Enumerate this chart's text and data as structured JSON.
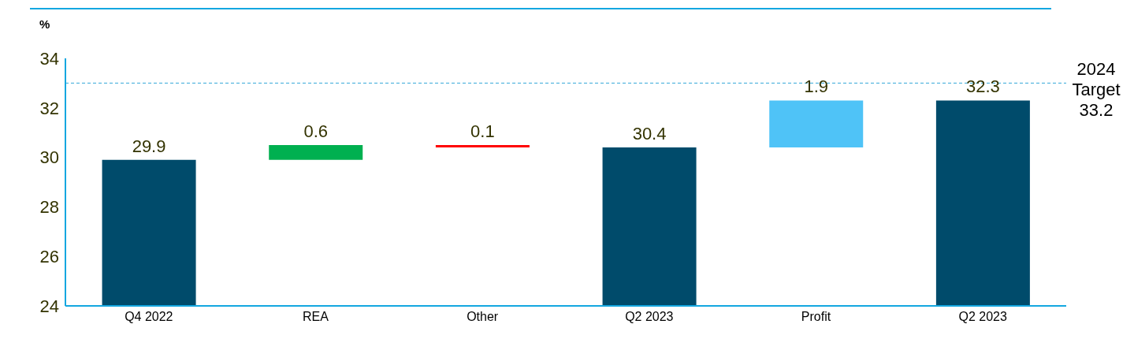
{
  "chart_data": {
    "type": "bar",
    "ylabel": "%",
    "categories": [
      "Q4 2022",
      "REA",
      "Other",
      "Q2 2023",
      "Profit",
      "Q2 2023"
    ],
    "values": [
      29.9,
      0.6,
      -0.1,
      30.4,
      1.9,
      32.3
    ],
    "base": [
      null,
      29.9,
      30.5,
      null,
      30.4,
      null
    ],
    "value_labels": [
      "29.9",
      "0.6",
      "0.1",
      "30.4",
      "1.9",
      "32.3"
    ],
    "colors": [
      "#004b6b",
      "#00b050",
      "#ff0000",
      "#004b6b",
      "#4fc3f7",
      "#004b6b"
    ],
    "ylim": [
      24,
      34
    ],
    "yticks": [
      24,
      26,
      28,
      30,
      32,
      34
    ],
    "ref_lines": [
      {
        "axis": "y",
        "value": 33,
        "label": "2024\nTarget\n33.2",
        "color": "#33a8d8",
        "line_style": "dashed"
      }
    ]
  }
}
